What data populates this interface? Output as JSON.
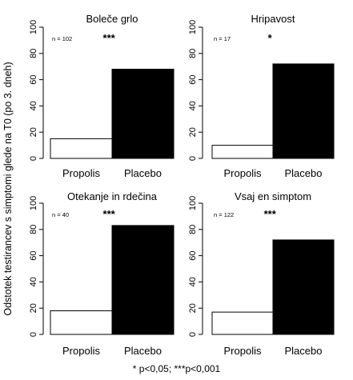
{
  "chart_data": {
    "type": "bar",
    "ylabel": "Odstotek testirancev s simptomi glede na T0 (po 3. dneh)",
    "ylim": [
      0,
      100
    ],
    "yticks": [
      0,
      20,
      40,
      60,
      80,
      100
    ],
    "categories": [
      "Propolis",
      "Placebo"
    ],
    "bar_colors": [
      "#ffffff",
      "#000000"
    ],
    "footnote": "* p<0,05;  ***p<0,001",
    "panels": [
      {
        "title": "Boleče grlo",
        "n_label": "n = 102",
        "significance": "***",
        "values": [
          15,
          68
        ]
      },
      {
        "title": "Hripavost",
        "n_label": "n = 17",
        "significance": "*",
        "values": [
          10,
          72
        ]
      },
      {
        "title": "Otekanje in rdečina",
        "n_label": "n = 40",
        "significance": "***",
        "values": [
          18,
          83
        ]
      },
      {
        "title": "Vsaj en simptom",
        "n_label": "n = 122",
        "significance": "***",
        "values": [
          17,
          72
        ]
      }
    ]
  }
}
